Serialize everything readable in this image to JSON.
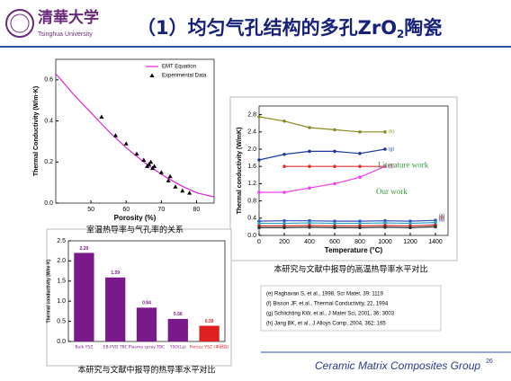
{
  "header": {
    "logo": "清華大学",
    "logo_sub": "Tsinghua University",
    "title": [
      "（1）均匀气孔结构的多孔ZrO",
      "2",
      "陶瓷"
    ]
  },
  "chart_data": [
    {
      "type": "scatter",
      "caption": "室温热导率与气孔率的关系",
      "xlabel": "Porosity (%)",
      "ylabel": "Thermal Conductivity (W/m·K)",
      "xlim": [
        40,
        85
      ],
      "xticks": [
        50,
        60,
        70,
        80
      ],
      "ylim": [
        0,
        0.7
      ],
      "yticks": [
        {
          "value": 0,
          "label": "0.0"
        },
        0.2,
        0.4,
        0.6
      ],
      "legend": "upper right",
      "series": [
        {
          "name": "EMT Equation",
          "type": "line",
          "color": "#e020e0",
          "x": [
            40,
            45,
            50,
            55,
            60,
            65,
            70,
            75,
            80,
            85
          ],
          "values": [
            0.63,
            0.53,
            0.44,
            0.35,
            0.27,
            0.2,
            0.14,
            0.09,
            0.05,
            0.03
          ]
        },
        {
          "name": "Experimental Data",
          "type": "scatter",
          "color": "#000000",
          "x": [
            53,
            57,
            60,
            63,
            65,
            66,
            66.5,
            67,
            67.5,
            68,
            70,
            72,
            72.5,
            74,
            76,
            78
          ],
          "values": [
            0.42,
            0.33,
            0.29,
            0.24,
            0.21,
            0.18,
            0.19,
            0.2,
            0.17,
            0.18,
            0.15,
            0.11,
            0.13,
            0.08,
            0.06,
            0.05
          ]
        }
      ]
    },
    {
      "type": "line",
      "caption": "本研究与文献中报导的高温热导率水平对比",
      "xlabel": "Temperature (°C)",
      "ylabel": "Thermal conductivity (W/mK)",
      "xlim": [
        0,
        1500
      ],
      "xticks": [
        0,
        200,
        400,
        600,
        800,
        1000,
        1200,
        1400
      ],
      "ylim": [
        0,
        3.0
      ],
      "yticks": [
        {
          "value": 0,
          "label": "0.0"
        },
        0.4,
        0.8,
        1.2,
        1.6,
        {
          "value": 2,
          "label": "2.0"
        },
        2.4,
        2.8
      ],
      "annotations": [
        "Literature work",
        "Our work"
      ],
      "series": [
        {
          "name": "(h)",
          "color": "#8a8a20",
          "x": [
            0,
            200,
            400,
            600,
            800,
            1000
          ],
          "values": [
            2.75,
            2.65,
            2.5,
            2.45,
            2.4,
            2.4
          ]
        },
        {
          "name": "(g)",
          "color": "#1a3aa0",
          "x": [
            0,
            200,
            400,
            600,
            800,
            1000
          ],
          "values": [
            1.75,
            1.88,
            1.95,
            1.95,
            1.9,
            2.0
          ]
        },
        {
          "name": "(f)",
          "color": "#e03030",
          "x": [
            200,
            400,
            600,
            800,
            1000
          ],
          "values": [
            1.6,
            1.6,
            1.6,
            1.6,
            1.6
          ]
        },
        {
          "name": "(e)",
          "color": "#f040f0",
          "x": [
            0,
            200,
            400,
            600,
            800,
            1000
          ],
          "values": [
            1.0,
            1.0,
            1.1,
            1.2,
            1.35,
            1.6
          ]
        },
        {
          "name": "(d)",
          "color": "#3050c0",
          "x": [
            0,
            200,
            400,
            600,
            800,
            1000,
            1200,
            1400
          ],
          "values": [
            0.33,
            0.34,
            0.34,
            0.33,
            0.33,
            0.34,
            0.33,
            0.35
          ]
        },
        {
          "name": "(c)",
          "color": "#30a0c0",
          "x": [
            0,
            200,
            400,
            600,
            800,
            1000,
            1200,
            1400
          ],
          "values": [
            0.28,
            0.28,
            0.29,
            0.28,
            0.28,
            0.29,
            0.28,
            0.3
          ]
        },
        {
          "name": "(b)",
          "color": "#d02020",
          "x": [
            0,
            200,
            400,
            600,
            800,
            1000,
            1200,
            1400
          ],
          "values": [
            0.22,
            0.22,
            0.23,
            0.22,
            0.22,
            0.23,
            0.22,
            0.24
          ]
        },
        {
          "name": "(a)",
          "color": "#303030",
          "x": [
            0,
            200,
            400,
            600,
            800,
            1000,
            1200,
            1400
          ],
          "values": [
            0.18,
            0.18,
            0.19,
            0.18,
            0.18,
            0.19,
            0.18,
            0.2
          ]
        }
      ]
    },
    {
      "type": "bar",
      "caption": "本研究与文献中报导的热导率水平对比",
      "ylabel": "Thermal conductivity (W/m·K)",
      "categories": [
        "Bulk YSZ",
        "EB-PVD TBC",
        "Plasma spray TBC",
        "YSO(La)",
        "Porous YSZ (本研究)"
      ],
      "values": [
        2.2,
        1.59,
        0.84,
        0.56,
        0.39
      ],
      "value_labels": [
        "2.20",
        "1.59",
        "0.84",
        "0.56",
        "0.39"
      ],
      "colors": [
        "#7a1a8a",
        "#7a1a8a",
        "#7a1a8a",
        "#7a1a8a",
        "#e02020"
      ],
      "ylim": [
        0,
        2.5
      ],
      "yticks": [
        {
          "value": 0,
          "label": "0.0"
        },
        0.5,
        {
          "value": 1,
          "label": "1.0"
        },
        1.5,
        {
          "value": 2,
          "label": "2.0"
        },
        2.5
      ]
    }
  ],
  "references": [
    "(e) Raghavan S, et al., 1998, Scr Mater, 39: 1119",
    "(f) Bisson JF, et al., Thermal Conductivity, 22, 1994",
    "(g) Schlichting KW, et al., J Mater Sci, 2001, 36: 3003",
    "(h) Jang BK, et al., J Alloys Comp, 2004, 362: 165"
  ],
  "footer": {
    "group": "Ceramic Matrix Composites Group",
    "page": "26"
  }
}
